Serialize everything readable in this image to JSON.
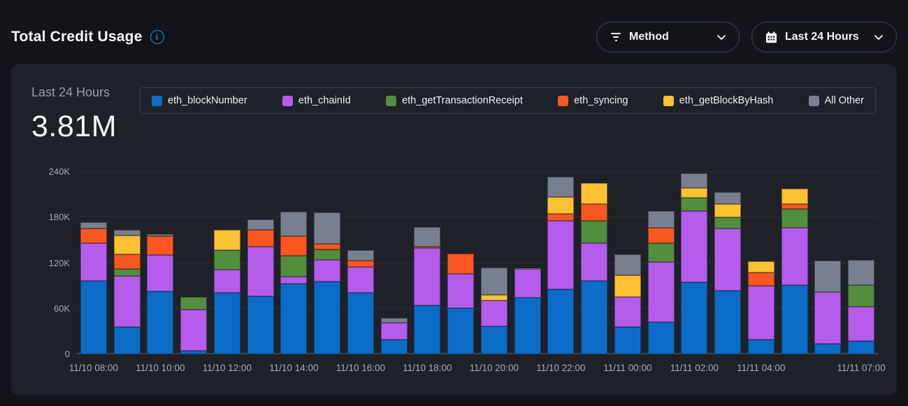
{
  "header": {
    "title": "Total Credit Usage",
    "info_icon": "info-icon",
    "filters": [
      {
        "label": "Method",
        "icon": "filter-icon"
      },
      {
        "label": "Last 24 Hours",
        "icon": "calendar-icon"
      }
    ]
  },
  "panel": {
    "summary_label": "Last 24 Hours",
    "summary_value": "3.81M"
  },
  "chart_data": {
    "type": "bar",
    "stacked": true,
    "title": "Total Credit Usage",
    "values_unit": "credits (thousands)",
    "ylim": [
      0,
      240
    ],
    "grid": true,
    "legend_position": "top",
    "y_ticks": [
      {
        "label": "0",
        "value": 0
      },
      {
        "label": "60K",
        "value": 60
      },
      {
        "label": "120K",
        "value": 120
      },
      {
        "label": "180K",
        "value": 180
      },
      {
        "label": "240K",
        "value": 240
      }
    ],
    "x": [
      "11/10 08:00",
      "11/10 09:00",
      "11/10 10:00",
      "11/10 11:00",
      "11/10 12:00",
      "11/10 13:00",
      "11/10 14:00",
      "11/10 15:00",
      "11/10 16:00",
      "11/10 17:00",
      "11/10 18:00",
      "11/10 19:00",
      "11/10 20:00",
      "11/10 21:00",
      "11/10 22:00",
      "11/10 23:00",
      "11/11 00:00",
      "11/11 01:00",
      "11/11 02:00",
      "11/11 03:00",
      "11/11 04:00",
      "11/11 05:00",
      "11/11 06:00",
      "11/11 07:00"
    ],
    "x_tick_labels": [
      {
        "label": "11/10 08:00",
        "slot": 0
      },
      {
        "label": "11/10 10:00",
        "slot": 2
      },
      {
        "label": "11/10 12:00",
        "slot": 4
      },
      {
        "label": "11/10 14:00",
        "slot": 6
      },
      {
        "label": "11/10 16:00",
        "slot": 8
      },
      {
        "label": "11/10 18:00",
        "slot": 10
      },
      {
        "label": "11/10 20:00",
        "slot": 12
      },
      {
        "label": "11/10 22:00",
        "slot": 14
      },
      {
        "label": "11/11 00:00",
        "slot": 16
      },
      {
        "label": "11/11 02:00",
        "slot": 18
      },
      {
        "label": "11/11 04:00",
        "slot": 20
      },
      {
        "label": "11/11 07:00",
        "slot": 23
      }
    ],
    "series": [
      {
        "name": "eth_blockNumber",
        "color": "#0a6cc6",
        "values": [
          96.3,
          35.6,
          83.0,
          4.3,
          80.6,
          76.0,
          93.1,
          95.3,
          80.9,
          19.0,
          64.1,
          60.7,
          37.1,
          74.8,
          85.5,
          96.3,
          35.6,
          42.6,
          94.4,
          84.0,
          19.6,
          91.3,
          14.1,
          17.2
        ]
      },
      {
        "name": "eth_chainId",
        "color": "#b55ced",
        "values": [
          49.7,
          67.4,
          47.5,
          54.8,
          30.6,
          65.8,
          8.9,
          29.1,
          34.3,
          22.6,
          75.4,
          45.3,
          33.7,
          37.3,
          90.1,
          50.2,
          39.8,
          78.8,
          94.4,
          81.8,
          70.2,
          75.4,
          68.0,
          45.0
        ]
      },
      {
        "name": "eth_getTransactionReceipt",
        "color": "#538d3e",
        "values": [
          0,
          9.5,
          0,
          16.3,
          25.5,
          0,
          27.6,
          13.8,
          0,
          0,
          0,
          0,
          0,
          1.0,
          0,
          29.1,
          0,
          24.5,
          17.5,
          14.4,
          0,
          24.3,
          0,
          28.5
        ]
      },
      {
        "name": "eth_syncing",
        "color": "#fb5722",
        "values": [
          19.9,
          19.0,
          24.5,
          0,
          0,
          21.5,
          26.0,
          6.8,
          7.7,
          0,
          1.8,
          26.1,
          0,
          0,
          9.5,
          22.3,
          0,
          20.5,
          0,
          0,
          17.7,
          6.4,
          0,
          0
        ]
      },
      {
        "name": "eth_getBlockByHash",
        "color": "#fdc133",
        "values": [
          0,
          25.1,
          0,
          0,
          26.7,
          0,
          0,
          0,
          0,
          0,
          0,
          0,
          7.6,
          0,
          22.1,
          27.0,
          28.5,
          0,
          12.6,
          17.2,
          14.7,
          20.5,
          0,
          0
        ]
      },
      {
        "name": "All Other",
        "color": "#78808f",
        "values": [
          7.7,
          6.8,
          3.0,
          0,
          0,
          13.8,
          31.6,
          41.4,
          13.8,
          6.2,
          26.0,
          0,
          35.3,
          0,
          26.7,
          0,
          27.3,
          22.3,
          19.0,
          15.9,
          0,
          0,
          40.8,
          33.6
        ]
      }
    ]
  }
}
